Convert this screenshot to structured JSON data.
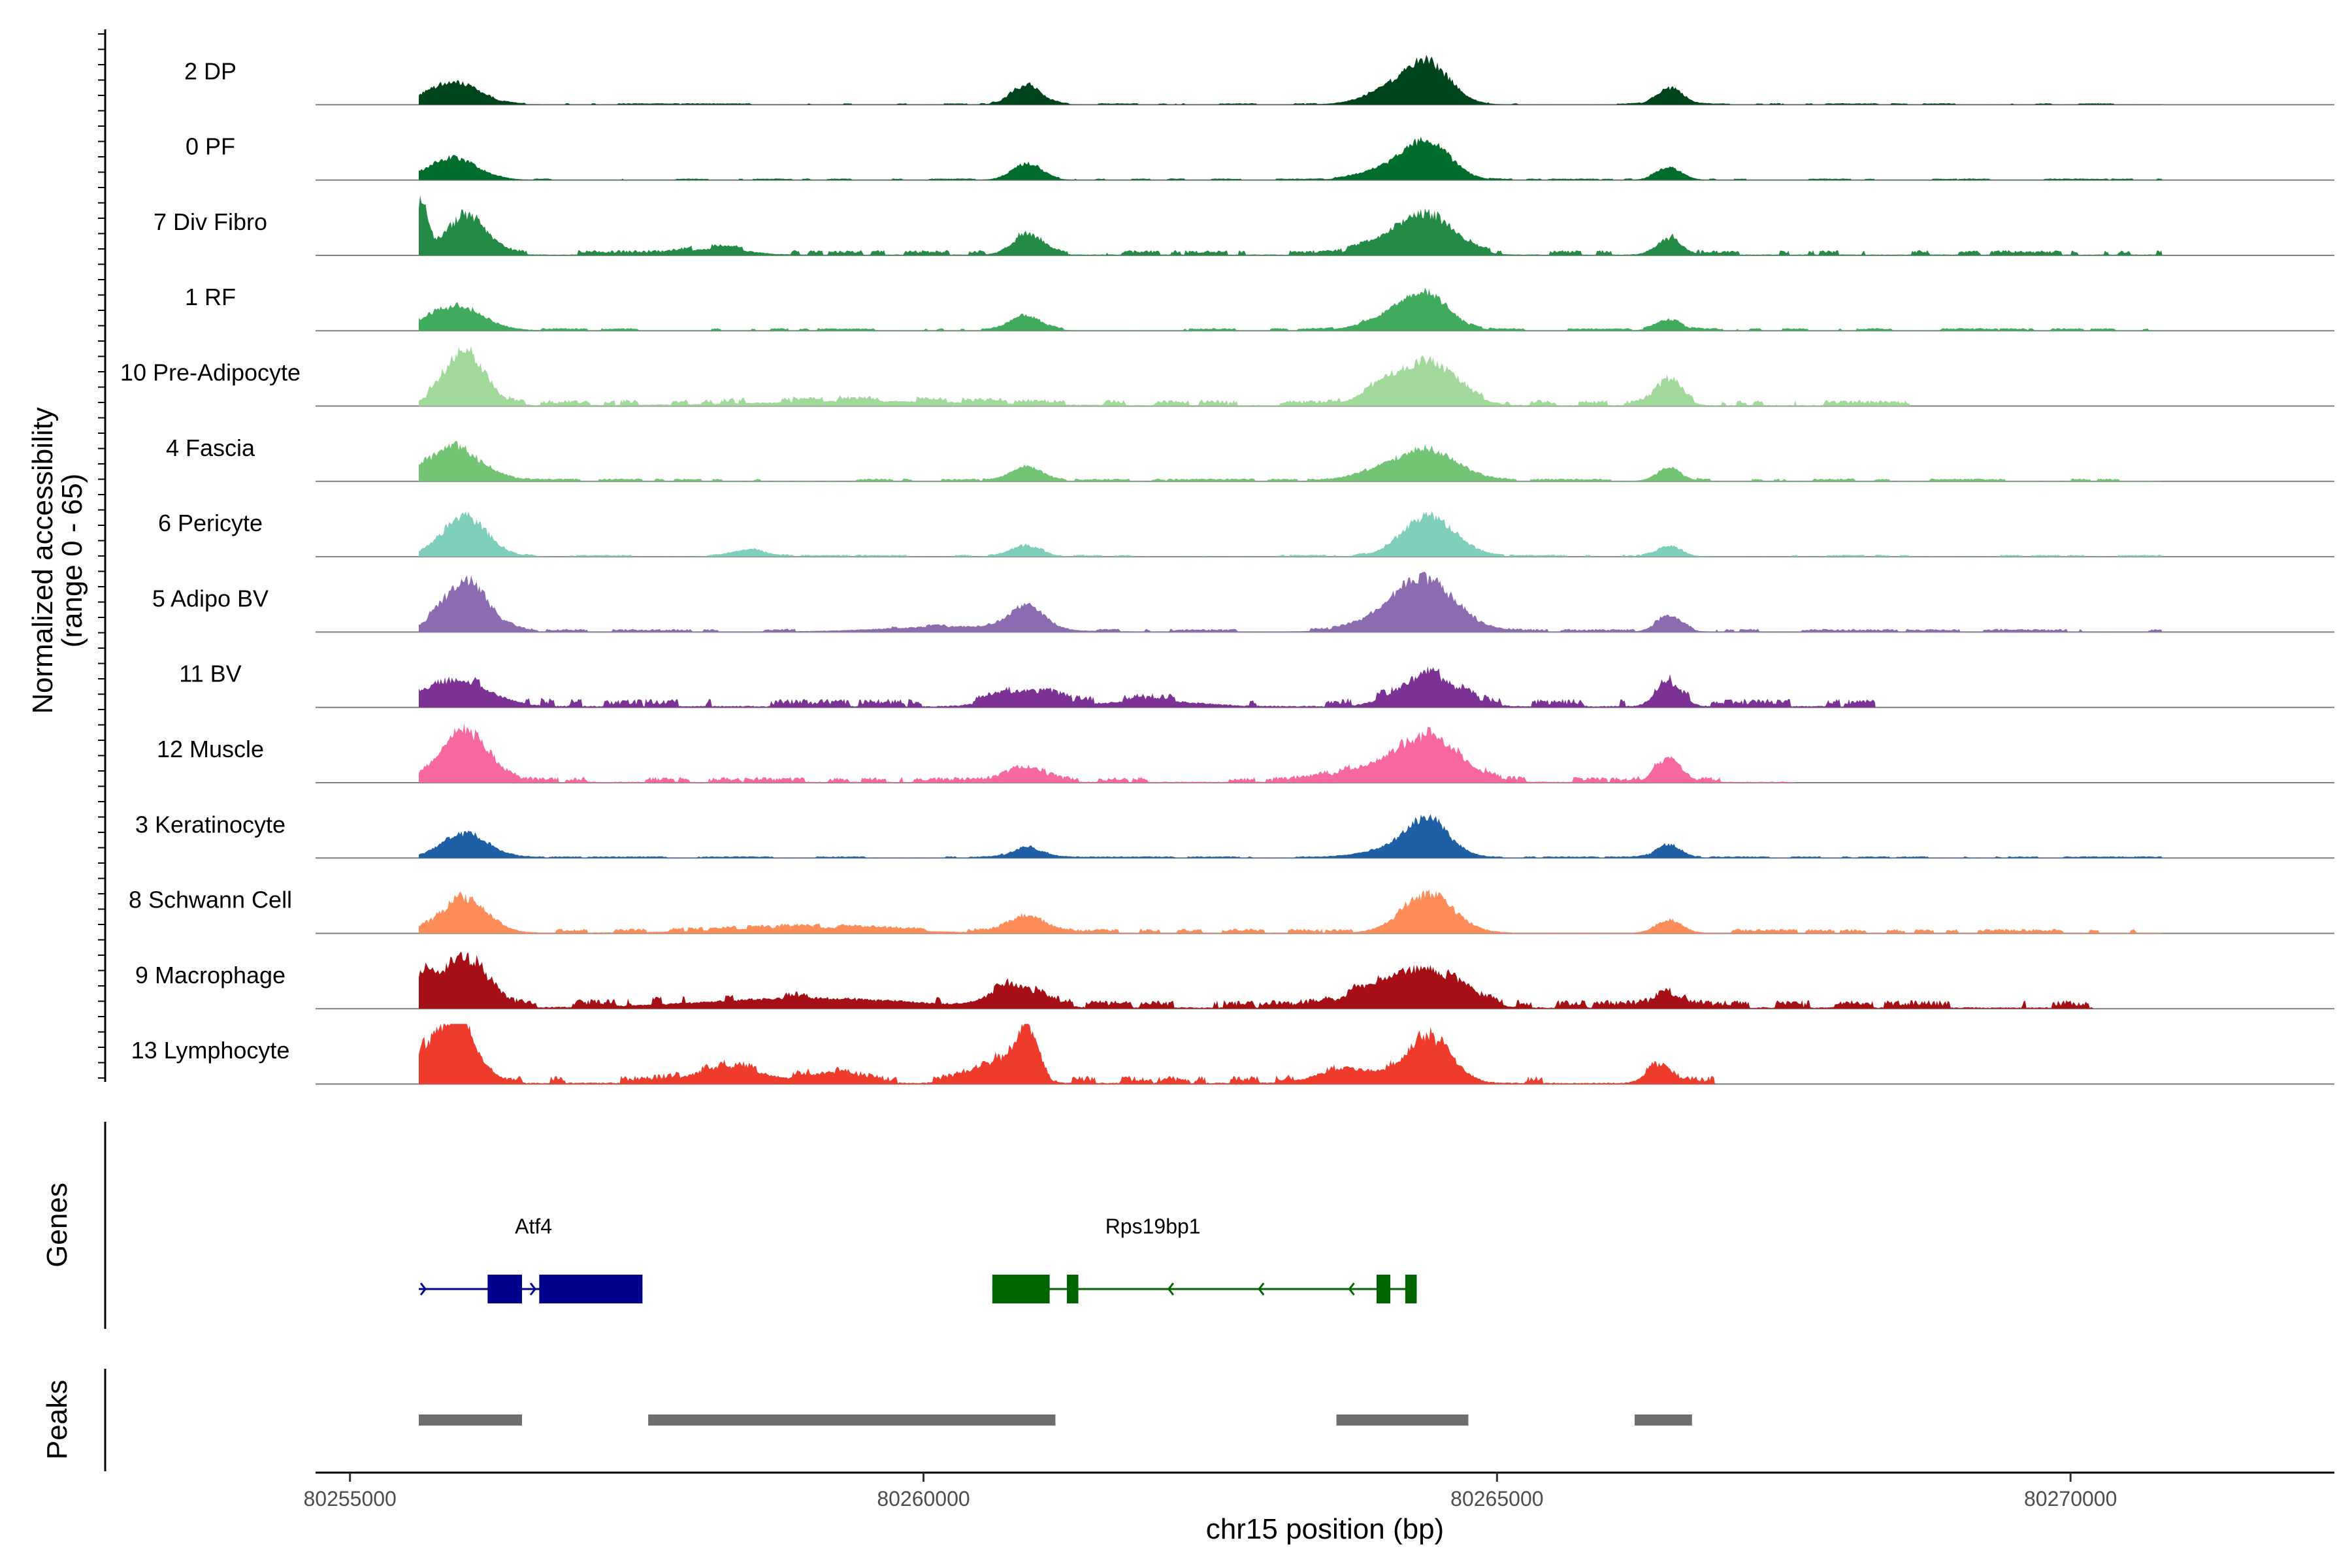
{
  "chart_data": {
    "type": "area",
    "title": "",
    "ylabel_line1": "Normalized accessibility",
    "ylabel_line2": "(range 0 - 65)",
    "xlabel": "chr15 position (bp)",
    "xlim": [
      80254700,
      80272300
    ],
    "x_ticks": [
      80255000,
      80260000,
      80265000,
      80270000
    ],
    "x_tick_labels": [
      "80255000",
      "80260000",
      "80265000",
      "80270000"
    ],
    "ylim": [
      0,
      65
    ],
    "track_start": 80255600,
    "track_end": 80272300,
    "series": [
      {
        "name": "2 DP",
        "color": "#00441b",
        "bg": 0.02,
        "noise": 0.3,
        "max_x": 80270800,
        "peaks": [
          [
            80255900,
            220,
            0.42
          ],
          [
            80260900,
            130,
            0.38
          ],
          [
            80264400,
            200,
            0.7
          ],
          [
            80264100,
            250,
            0.25
          ],
          [
            80266500,
            110,
            0.32
          ]
        ]
      },
      {
        "name": "0 PF",
        "color": "#006d2c",
        "bg": 0.02,
        "noise": 0.3,
        "max_x": 80270800,
        "peaks": [
          [
            80255900,
            220,
            0.4
          ],
          [
            80260900,
            130,
            0.3
          ],
          [
            80264400,
            200,
            0.65
          ],
          [
            80264100,
            250,
            0.22
          ],
          [
            80266500,
            110,
            0.24
          ]
        ]
      },
      {
        "name": "7 Div Fibro",
        "color": "#238b45",
        "bg": 0.05,
        "noise": 0.6,
        "max_x": 80270800,
        "peaks": [
          [
            80255620,
            50,
            0.95
          ],
          [
            80256000,
            180,
            0.7
          ],
          [
            80258200,
            250,
            0.12
          ],
          [
            80260900,
            130,
            0.35
          ],
          [
            80264400,
            230,
            0.75
          ],
          [
            80264000,
            200,
            0.22
          ],
          [
            80266500,
            110,
            0.3
          ]
        ]
      },
      {
        "name": "1 RF",
        "color": "#41ab5d",
        "bg": 0.03,
        "noise": 0.4,
        "max_x": 80270800,
        "peaks": [
          [
            80255900,
            250,
            0.45
          ],
          [
            80260900,
            130,
            0.28
          ],
          [
            80264400,
            200,
            0.55
          ],
          [
            80264100,
            250,
            0.25
          ],
          [
            80266500,
            110,
            0.18
          ]
        ]
      },
      {
        "name": "10 Pre-Adipocyte",
        "color": "#a1d99b",
        "bg": 0.05,
        "noise": 0.8,
        "max_x": 80268600,
        "peaks": [
          [
            80256000,
            180,
            1.0
          ],
          [
            80259500,
            900,
            0.08
          ],
          [
            80264400,
            250,
            0.75
          ],
          [
            80264000,
            200,
            0.25
          ],
          [
            80266500,
            110,
            0.45
          ]
        ]
      },
      {
        "name": "4 Fascia",
        "color": "#74c476",
        "bg": 0.03,
        "noise": 0.5,
        "max_x": 80270800,
        "peaks": [
          [
            80255900,
            230,
            0.65
          ],
          [
            80260900,
            130,
            0.25
          ],
          [
            80264400,
            250,
            0.55
          ],
          [
            80264000,
            200,
            0.18
          ],
          [
            80266500,
            110,
            0.22
          ]
        ]
      },
      {
        "name": "6 Pericyte",
        "color": "#7fcdbb",
        "bg": 0.02,
        "noise": 0.5,
        "max_x": 80270800,
        "peaks": [
          [
            80256000,
            200,
            0.75
          ],
          [
            80258500,
            150,
            0.12
          ],
          [
            80260900,
            130,
            0.2
          ],
          [
            80264400,
            230,
            0.75
          ],
          [
            80266500,
            110,
            0.18
          ]
        ]
      },
      {
        "name": "5 Adipo BV",
        "color": "#8c6bb1",
        "bg": 0.03,
        "noise": 0.6,
        "max_x": 80270800,
        "peaks": [
          [
            80256000,
            200,
            0.95
          ],
          [
            80260900,
            150,
            0.45
          ],
          [
            80260300,
            600,
            0.1
          ],
          [
            80264400,
            250,
            0.85
          ],
          [
            80264100,
            300,
            0.25
          ],
          [
            80266500,
            110,
            0.28
          ]
        ]
      },
      {
        "name": "11 BV",
        "color": "#7b3294",
        "bg": 0.06,
        "noise": 1.0,
        "max_x": 80268300,
        "peaks": [
          [
            80255900,
            300,
            0.5
          ],
          [
            80260900,
            250,
            0.3
          ],
          [
            80262000,
            400,
            0.1
          ],
          [
            80264400,
            250,
            0.6
          ],
          [
            80266500,
            110,
            0.45
          ]
        ]
      },
      {
        "name": "12 Muscle",
        "color": "#f768a1",
        "bg": 0.04,
        "noise": 1.0,
        "max_x": 80267600,
        "peaks": [
          [
            80256000,
            200,
            0.95
          ],
          [
            80260900,
            150,
            0.3
          ],
          [
            80264400,
            280,
            0.85
          ],
          [
            80263800,
            300,
            0.2
          ],
          [
            80266500,
            110,
            0.45
          ]
        ]
      },
      {
        "name": "3 Keratinocyte",
        "color": "#1f5fa6",
        "bg": 0.02,
        "noise": 0.4,
        "max_x": 80270800,
        "peaks": [
          [
            80256000,
            200,
            0.45
          ],
          [
            80260900,
            130,
            0.2
          ],
          [
            80264400,
            180,
            0.7
          ],
          [
            80264100,
            250,
            0.15
          ],
          [
            80266500,
            110,
            0.25
          ]
        ]
      },
      {
        "name": "8 Schwann Cell",
        "color": "#fc8d59",
        "bg": 0.04,
        "noise": 0.7,
        "max_x": 80270800,
        "peaks": [
          [
            80256000,
            200,
            0.65
          ],
          [
            80259000,
            700,
            0.1
          ],
          [
            80260900,
            150,
            0.28
          ],
          [
            80264400,
            230,
            0.7
          ],
          [
            80266500,
            110,
            0.25
          ]
        ]
      },
      {
        "name": "9 Macrophage",
        "color": "#a50f15",
        "bg": 0.06,
        "noise": 1.0,
        "max_x": 80270200,
        "peaks": [
          [
            80256000,
            180,
            0.95
          ],
          [
            80255650,
            80,
            0.55
          ],
          [
            80259000,
            900,
            0.18
          ],
          [
            80260800,
            200,
            0.4
          ],
          [
            80264400,
            280,
            0.7
          ],
          [
            80263900,
            250,
            0.3
          ],
          [
            80266500,
            110,
            0.25
          ]
        ]
      },
      {
        "name": "13 Lymphocyte",
        "color": "#ef3b2c",
        "bg": 0.05,
        "noise": 1.2,
        "max_x": 80266900,
        "peaks": [
          [
            80255800,
            200,
            0.9
          ],
          [
            80256000,
            120,
            0.6
          ],
          [
            80258300,
            300,
            0.3
          ],
          [
            80259200,
            200,
            0.2
          ],
          [
            80260900,
            90,
            1.0
          ],
          [
            80260600,
            200,
            0.4
          ],
          [
            80263700,
            250,
            0.28
          ],
          [
            80264400,
            200,
            0.85
          ],
          [
            80266400,
            100,
            0.3
          ]
        ]
      }
    ],
    "genes": [
      {
        "name": "Atf4",
        "color": "#00008b",
        "strand": "+",
        "start": 80255600,
        "end": 80257550,
        "exons": [
          [
            80256200,
            80256500
          ],
          [
            80256650,
            80257550
          ]
        ],
        "label_x": 80256600
      },
      {
        "name": "Rps19bp1",
        "color": "#006400",
        "strand": "-",
        "start": 80260600,
        "end": 80264300,
        "exons": [
          [
            80260600,
            80261100
          ],
          [
            80261250,
            80261350
          ],
          [
            80263950,
            80264070
          ],
          [
            80264200,
            80264300
          ]
        ],
        "label_x": 80262000
      }
    ],
    "peaks": [
      [
        80255600,
        80256500
      ],
      [
        80257600,
        80261150
      ],
      [
        80263600,
        80264750
      ],
      [
        80266200,
        80266700
      ]
    ],
    "panels": {
      "genes_label": "Genes",
      "peaks_label": "Peaks"
    }
  }
}
